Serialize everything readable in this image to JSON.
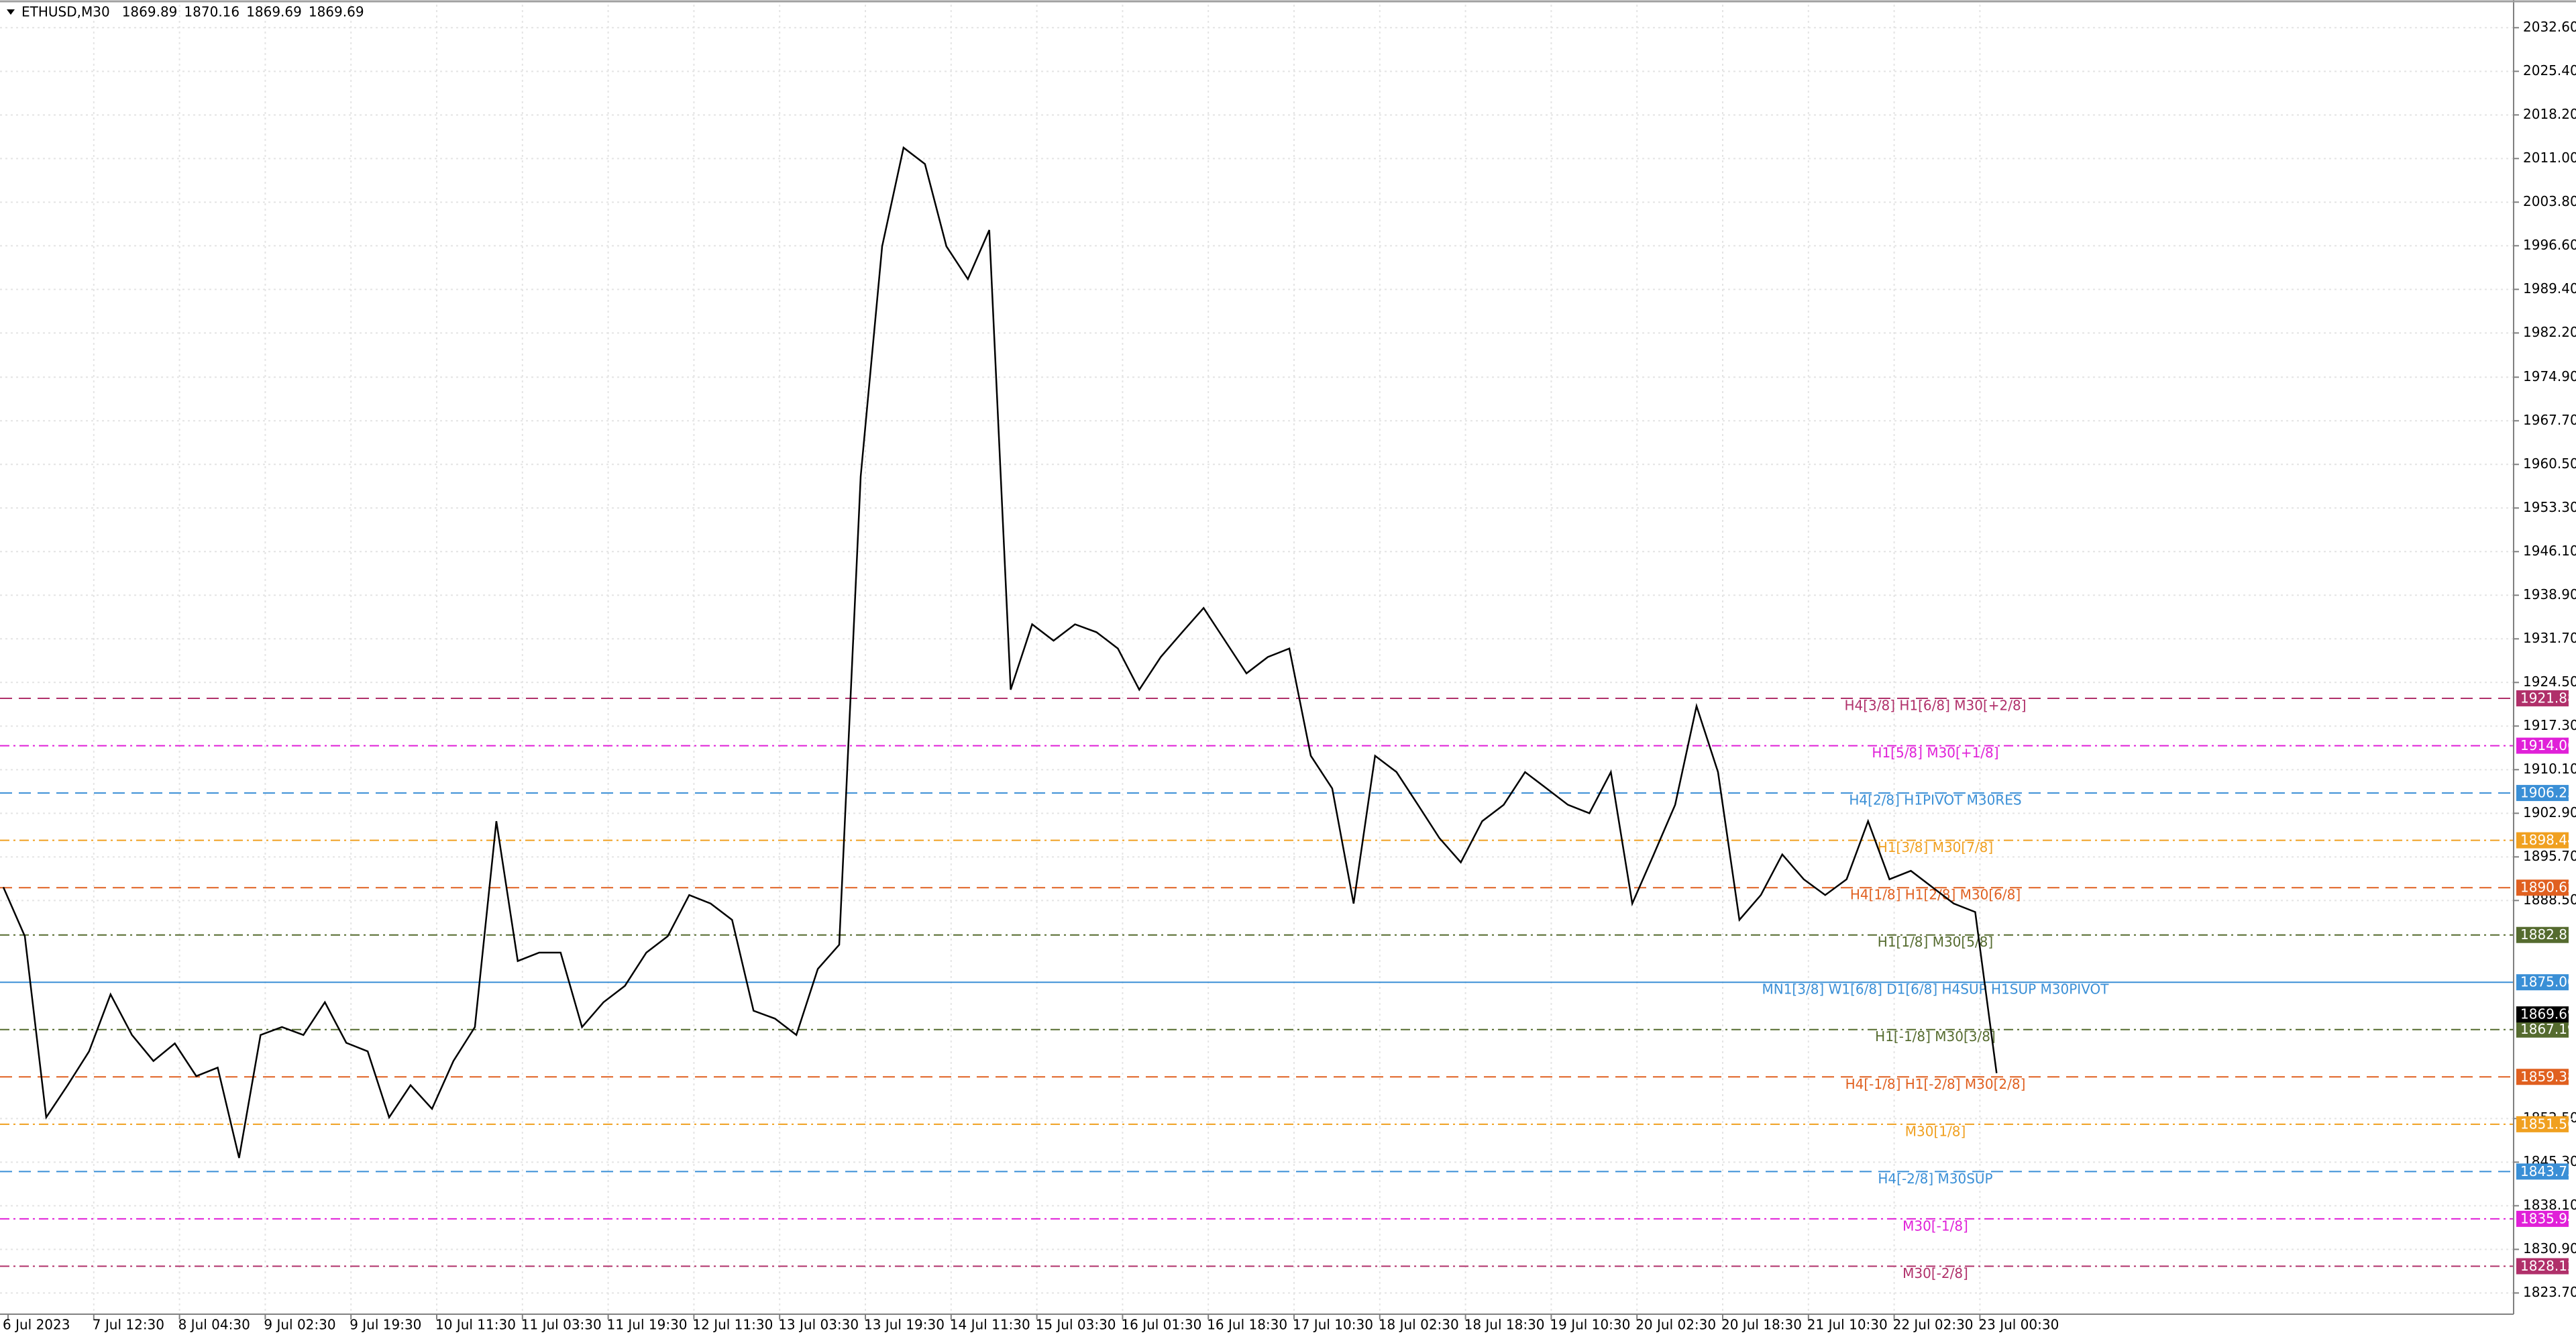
{
  "chart_data": {
    "type": "line",
    "title": "ETHUSD,M30",
    "quote": [
      1869.89,
      1870.16,
      1869.69,
      1869.69
    ],
    "x_labels": [
      "6 Jul 2023",
      "7 Jul 12:30",
      "8 Jul 04:30",
      "9 Jul 02:30",
      "9 Jul 19:30",
      "10 Jul 11:30",
      "11 Jul 03:30",
      "11 Jul 19:30",
      "12 Jul 11:30",
      "13 Jul 03:30",
      "13 Jul 19:30",
      "14 Jul 11:30",
      "15 Jul 03:30",
      "16 Jul 01:30",
      "16 Jul 18:30",
      "17 Jul 10:30",
      "18 Jul 02:30",
      "18 Jul 18:30",
      "19 Jul 10:30",
      "20 Jul 02:30",
      "20 Jul 18:30",
      "21 Jul 10:30",
      "22 Jul 02:30",
      "23 Jul 00:30"
    ],
    "series": [
      {
        "color": "#000000",
        "values": [
          1890.7,
          1882.6,
          1852.7,
          1858,
          1863.6,
          1873,
          1866.3,
          1862,
          1864.9,
          1859.5,
          1860.9,
          1846,
          1866.3,
          1867.6,
          1866.3,
          1871.7,
          1865,
          1863.6,
          1852.7,
          1858,
          1854.1,
          1862,
          1867.6,
          1901.6,
          1878.5,
          1879.9,
          1879.9,
          1867.6,
          1871.7,
          1874.4,
          1879.9,
          1882.6,
          1889.4,
          1888,
          1885.3,
          1870.3,
          1869,
          1866.3,
          1877.2,
          1881.2,
          1958.5,
          1996.5,
          2012.8,
          2010.1,
          1996.5,
          1991.1,
          1999.2,
          1923.3,
          1934.1,
          1931.4,
          1934.1,
          1932.8,
          1930.1,
          1923.3,
          1928.7,
          1932.8,
          1936.8,
          1931.4,
          1926,
          1928.7,
          1930.1,
          1912.4,
          1907,
          1888,
          1912.4,
          1909.7,
          1904.3,
          1898.8,
          1894.8,
          1901.6,
          1904.3,
          1909.7,
          1907,
          1904.3,
          1902.9,
          1909.7,
          1888,
          1896.1,
          1904.3,
          1920.6,
          1909.7,
          1885.3,
          1889.4,
          1896.1,
          1892,
          1889.4,
          1892,
          1901.6,
          1892,
          1893.4,
          1890.7,
          1888,
          1886.6,
          1860
        ]
      }
    ],
    "ylim": [
      1820.2,
      2036.4
    ],
    "yticks": [
      {
        "value": 2032.6,
        "label": "2032.60"
      },
      {
        "value": 2025.4,
        "label": "2025.40"
      },
      {
        "value": 2018.2,
        "label": "2018.20"
      },
      {
        "value": 2011.0,
        "label": "2011.00"
      },
      {
        "value": 2003.8,
        "label": "2003.80"
      },
      {
        "value": 1996.6,
        "label": "1996.60"
      },
      {
        "value": 1989.4,
        "label": "1989.40"
      },
      {
        "value": 1982.2,
        "label": "1982.20"
      },
      {
        "value": 1974.9,
        "label": "1974.90"
      },
      {
        "value": 1967.7,
        "label": "1967.70"
      },
      {
        "value": 1960.5,
        "label": "1960.50"
      },
      {
        "value": 1953.3,
        "label": "1953.30"
      },
      {
        "value": 1946.1,
        "label": "1946.10"
      },
      {
        "value": 1938.9,
        "label": "1938.90"
      },
      {
        "value": 1931.7,
        "label": "1931.70"
      },
      {
        "value": 1924.5,
        "label": "1924.50"
      },
      {
        "value": 1917.3,
        "label": "1917.30"
      },
      {
        "value": 1910.1,
        "label": "1910.10"
      },
      {
        "value": 1902.9,
        "label": "1902.90"
      },
      {
        "value": 1895.7,
        "label": "1895.70"
      },
      {
        "value": 1888.5,
        "label": "1888.50"
      },
      {
        "value": 1852.5,
        "label": "1852.50"
      },
      {
        "value": 1845.3,
        "label": "1845.30"
      },
      {
        "value": 1838.1,
        "label": "1838.10"
      },
      {
        "value": 1830.9,
        "label": "1830.90"
      },
      {
        "value": 1823.7,
        "label": "1823.70"
      }
    ],
    "grid": true,
    "levels": [
      {
        "price": 1921.88,
        "text": "H4[3/8] H1[6/8] M30[+2/8]",
        "color": "#b0306a",
        "dash": "dashed"
      },
      {
        "price": 1914.06,
        "text": "H1[5/8] M30[+1/8]",
        "color": "#e020d8",
        "dash": "dashdot"
      },
      {
        "price": 1906.25,
        "text": "H4[2/8] H1PIVOT M30RES",
        "color": "#3a8fd6",
        "dash": "dashed"
      },
      {
        "price": 1898.44,
        "text": "H1[3/8] M30[7/8]",
        "color": "#f0a020",
        "dash": "dashdot"
      },
      {
        "price": 1890.62,
        "text": "H4[1/8] H1[2/8] M30[6/8]",
        "color": "#e06020",
        "dash": "dashed"
      },
      {
        "price": 1882.81,
        "text": "H1[1/8] M30[5/8]",
        "color": "#556b2f",
        "dash": "dashdot"
      },
      {
        "price": {
          "value": 1875,
          "label": "1875.00"
        },
        "text": "MN1[3/8] W1[6/8] D1[6/8] H4SUP H1SUP M30PIVOT",
        "color": "#3a8fd6",
        "dash": "solid"
      },
      {
        "price": 1867.19,
        "text": "H1[-1/8] M30[3/8]",
        "color": "#556b2f",
        "dash": "dashdot"
      },
      {
        "price": 1859.38,
        "text": "H4[-1/8] H1[-2/8] M30[2/8]",
        "color": "#e06020",
        "dash": "dashed"
      },
      {
        "price": 1851.56,
        "text": "M30[1/8]",
        "color": "#f0a020",
        "dash": "dashdot"
      },
      {
        "price": 1843.75,
        "text": "H4[-2/8] M30SUP",
        "color": "#3a8fd6",
        "dash": "dashed"
      },
      {
        "price": 1835.94,
        "text": "M30[-1/8]",
        "color": "#e020d8",
        "dash": "dashdot"
      },
      {
        "price": 1828.12,
        "text": "M30[-2/8]",
        "color": "#b0306a",
        "dash": "dashdot"
      }
    ],
    "current_price": 1869.69
  }
}
